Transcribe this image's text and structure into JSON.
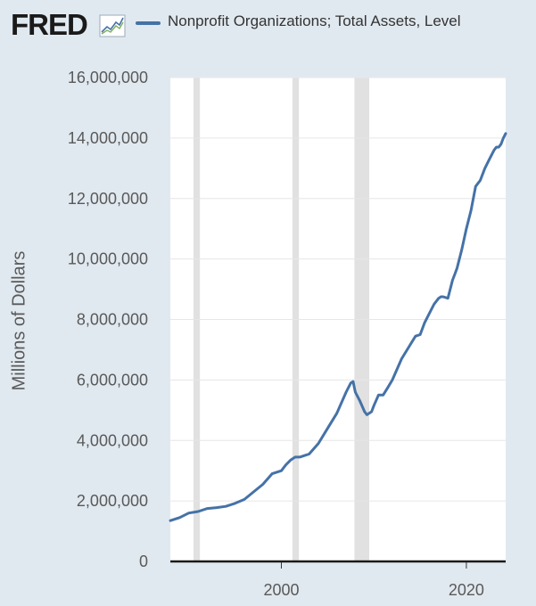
{
  "header": {
    "logo_text": "FRED",
    "legend_label": "Nonprofit Organizations; Total Assets, Level"
  },
  "colors": {
    "background": "#e1e9f0",
    "plot_background": "#ffffff",
    "line": "#4572a7",
    "recession": "#e1e1e1",
    "grid": "#e6e6e6"
  },
  "icons": {
    "logo_icon": "chart-line-icon"
  },
  "chart_data": {
    "type": "line",
    "title": "",
    "xlabel": "",
    "ylabel": "Millions of Dollars",
    "xlim": [
      1988,
      2024.25
    ],
    "ylim": [
      0,
      16000000
    ],
    "y_ticks": [
      0,
      2000000,
      4000000,
      6000000,
      8000000,
      10000000,
      12000000,
      14000000,
      16000000
    ],
    "y_tick_labels": [
      "0",
      "2,000,000",
      "4,000,000",
      "6,000,000",
      "8,000,000",
      "10,000,000",
      "12,000,000",
      "14,000,000",
      "16,000,000"
    ],
    "x_ticks": [
      2000,
      2020
    ],
    "x_tick_labels": [
      "2000",
      "2020"
    ],
    "grid": true,
    "recessions": [
      [
        1990.5,
        1991.2
      ],
      [
        2001.2,
        2001.9
      ],
      [
        2007.9,
        2009.5
      ]
    ],
    "series": [
      {
        "name": "Nonprofit Organizations; Total Assets, Level",
        "x": [
          1988,
          1989,
          1990,
          1991,
          1992,
          1993,
          1994,
          1995,
          1996,
          1997,
          1998,
          1999,
          2000,
          2000.5,
          2001,
          2001.5,
          2002,
          2002.5,
          2003,
          2004,
          2005,
          2006,
          2007,
          2007.5,
          2007.75,
          2008,
          2008.5,
          2009,
          2009.25,
          2009.75,
          2010,
          2010.5,
          2011,
          2011.5,
          2012,
          2013,
          2014,
          2014.5,
          2015,
          2015.5,
          2016,
          2016.5,
          2017,
          2017.25,
          2017.5,
          2018,
          2018.5,
          2018.75,
          2019,
          2019.5,
          2020,
          2020.5,
          2021,
          2021.5,
          2022,
          2022.5,
          2023,
          2023.25,
          2023.5,
          2023.75,
          2024,
          2024.25
        ],
        "y": [
          1350000,
          1450000,
          1600000,
          1650000,
          1750000,
          1780000,
          1820000,
          1920000,
          2050000,
          2300000,
          2550000,
          2900000,
          3000000,
          3200000,
          3350000,
          3450000,
          3450000,
          3500000,
          3550000,
          3900000,
          4400000,
          4900000,
          5600000,
          5900000,
          5950000,
          5600000,
          5300000,
          4950000,
          4850000,
          4950000,
          5150000,
          5500000,
          5500000,
          5750000,
          6000000,
          6700000,
          7200000,
          7450000,
          7500000,
          7900000,
          8200000,
          8500000,
          8700000,
          8750000,
          8750000,
          8700000,
          9300000,
          9500000,
          9700000,
          10300000,
          11000000,
          11600000,
          12400000,
          12600000,
          13000000,
          13300000,
          13600000,
          13700000,
          13700000,
          13800000,
          14000000,
          14150000
        ]
      }
    ]
  }
}
